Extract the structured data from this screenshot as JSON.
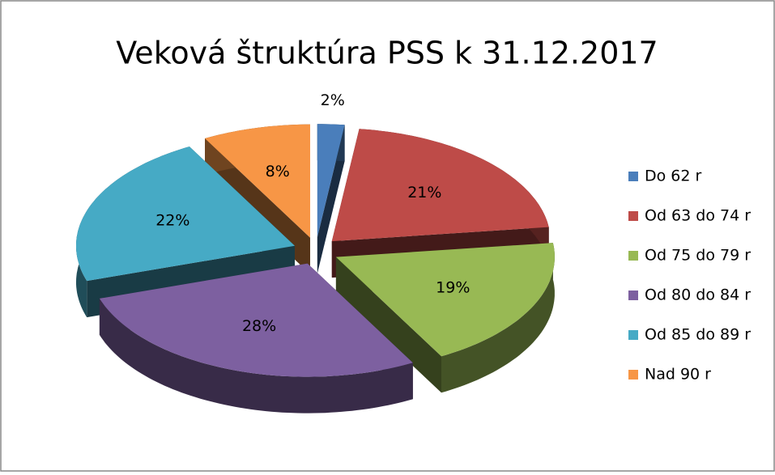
{
  "chart_data": {
    "type": "pie3d",
    "title": "Veková štruktúra PSS k 31.12.2017",
    "series": [
      {
        "name": "Veková štruktúra",
        "categories": [
          "Do 62 r",
          "Od 63 do 74 r",
          "Od 75 do 79 r",
          "Od 80 do 84 r",
          "Od 85 do 89 r",
          "Nad 90 r"
        ],
        "values": [
          2,
          21,
          19,
          28,
          22,
          8
        ],
        "value_labels": [
          "2%",
          "21%",
          "19%",
          "28%",
          "22%",
          "8%"
        ],
        "colors": [
          "#4a7ebb",
          "#be4b48",
          "#98b954",
          "#7d60a0",
          "#46aac5",
          "#f79646"
        ]
      }
    ],
    "legend": "right"
  }
}
